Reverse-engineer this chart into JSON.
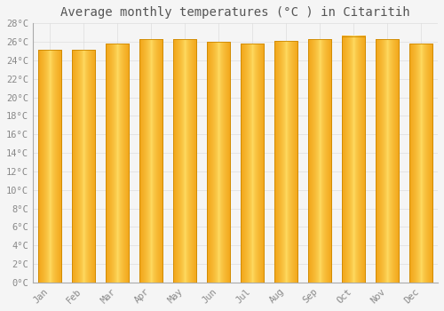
{
  "title": "Average monthly temperatures (°C ) in Citaritih",
  "months": [
    "Jan",
    "Feb",
    "Mar",
    "Apr",
    "May",
    "Jun",
    "Jul",
    "Aug",
    "Sep",
    "Oct",
    "Nov",
    "Dec"
  ],
  "values": [
    25.1,
    25.1,
    25.8,
    26.3,
    26.3,
    26.0,
    25.8,
    26.1,
    26.3,
    26.6,
    26.3,
    25.8
  ],
  "bar_color_center": "#FFD966",
  "bar_color_edge": "#F5A623",
  "bar_color_bottom": "#F0A500",
  "ylim": [
    0,
    28
  ],
  "yticks": [
    0,
    2,
    4,
    6,
    8,
    10,
    12,
    14,
    16,
    18,
    20,
    22,
    24,
    26,
    28
  ],
  "ytick_labels": [
    "0°C",
    "2°C",
    "4°C",
    "6°C",
    "8°C",
    "10°C",
    "12°C",
    "14°C",
    "16°C",
    "18°C",
    "20°C",
    "22°C",
    "24°C",
    "26°C",
    "28°C"
  ],
  "background_color": "#F5F5F5",
  "grid_color": "#DDDDDD",
  "title_fontsize": 10,
  "tick_fontsize": 7.5,
  "bar_edge_color": "#CC8800",
  "bar_width": 0.7,
  "gap_color": "#E8E8E8"
}
